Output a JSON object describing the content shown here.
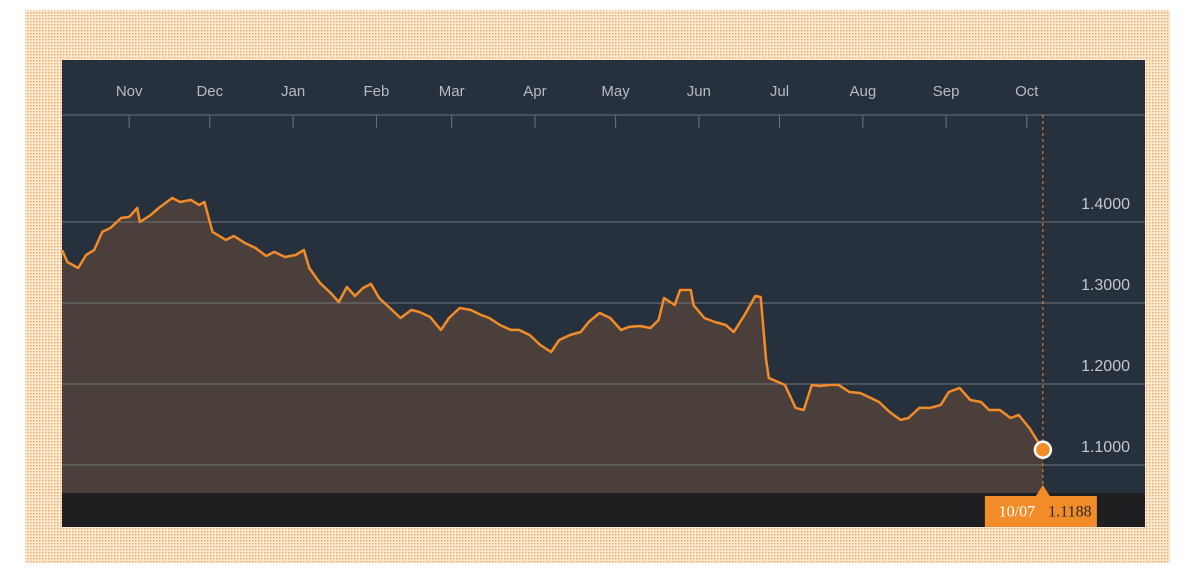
{
  "chart_data": {
    "type": "area",
    "color": "#f28c28",
    "area_color": "#4b3f3b",
    "background": "#27303d",
    "grid": true,
    "x": [
      0,
      2,
      6,
      9,
      12,
      15,
      18,
      22,
      25,
      28,
      29,
      33,
      36,
      41,
      44,
      48,
      51,
      53,
      56,
      61,
      64,
      68,
      72,
      76,
      79,
      83,
      87,
      90,
      92,
      96,
      100,
      103,
      106,
      109,
      112,
      115,
      118,
      122,
      126,
      130,
      133,
      137,
      141,
      144,
      148,
      152,
      156,
      159,
      163,
      167,
      170,
      174,
      178,
      182,
      185,
      189,
      193,
      196,
      200,
      204,
      208,
      211,
      215,
      219,
      222,
      224,
      228,
      230,
      234,
      235,
      239,
      243,
      247,
      250,
      254,
      258,
      260,
      262,
      263,
      269,
      273,
      276,
      279,
      282,
      286,
      289,
      293,
      297,
      301,
      304,
      308,
      312,
      315,
      319,
      323,
      327,
      330,
      334,
      338,
      342,
      345,
      349,
      353,
      356,
      360,
      365
    ],
    "values": [
      1.3654,
      1.3506,
      1.3432,
      1.3593,
      1.3654,
      1.3877,
      1.3926,
      1.4049,
      1.4062,
      1.4173,
      1.4,
      1.4086,
      1.4173,
      1.4296,
      1.4247,
      1.4272,
      1.421,
      1.4247,
      1.3877,
      1.3778,
      1.3827,
      1.3741,
      1.3679,
      1.358,
      1.363,
      1.3568,
      1.3593,
      1.3654,
      1.3432,
      1.3247,
      1.3123,
      1.3012,
      1.3198,
      1.3086,
      1.3185,
      1.3235,
      1.3062,
      1.2938,
      1.2815,
      1.2914,
      1.2889,
      1.2827,
      1.2667,
      1.2815,
      1.2938,
      1.2914,
      1.2852,
      1.2815,
      1.2728,
      1.2667,
      1.2667,
      1.2605,
      1.2481,
      1.2395,
      1.2543,
      1.2605,
      1.2642,
      1.2765,
      1.2877,
      1.2815,
      1.2667,
      1.2704,
      1.2716,
      1.2691,
      1.279,
      1.3062,
      1.2975,
      1.316,
      1.316,
      1.2975,
      1.2815,
      1.2765,
      1.2728,
      1.2642,
      1.2852,
      1.3086,
      1.3074,
      1.2296,
      1.2074,
      1.1988,
      1.1704,
      1.1679,
      1.1988,
      1.1975,
      1.1988,
      1.1988,
      1.1901,
      1.1889,
      1.1827,
      1.1778,
      1.1654,
      1.1556,
      1.158,
      1.1704,
      1.1704,
      1.1741,
      1.1901,
      1.1951,
      1.1802,
      1.1778,
      1.1679,
      1.1679,
      1.158,
      1.1617,
      1.1457,
      1.1188
    ],
    "xlim": [
      0,
      403
    ],
    "ylim": [
      1.0654,
      1.516
    ],
    "xticks": [
      {
        "value": 25,
        "label": "Nov"
      },
      {
        "value": 55,
        "label": "Dec"
      },
      {
        "value": 86,
        "label": "Jan"
      },
      {
        "value": 117,
        "label": "Feb"
      },
      {
        "value": 145,
        "label": "Mar"
      },
      {
        "value": 176,
        "label": "Apr"
      },
      {
        "value": 206,
        "label": "May"
      },
      {
        "value": 237,
        "label": "Jun"
      },
      {
        "value": 267,
        "label": "Jul"
      },
      {
        "value": 298,
        "label": "Aug"
      },
      {
        "value": 329,
        "label": "Sep"
      },
      {
        "value": 359,
        "label": "Oct"
      }
    ],
    "yticks": [
      {
        "value": 1.1,
        "label": "1.1000"
      },
      {
        "value": 1.2,
        "label": "1.2000"
      },
      {
        "value": 1.3,
        "label": "1.3000"
      },
      {
        "value": 1.4,
        "label": "1.4000"
      }
    ],
    "tooltip_date": "10/07"
  }
}
